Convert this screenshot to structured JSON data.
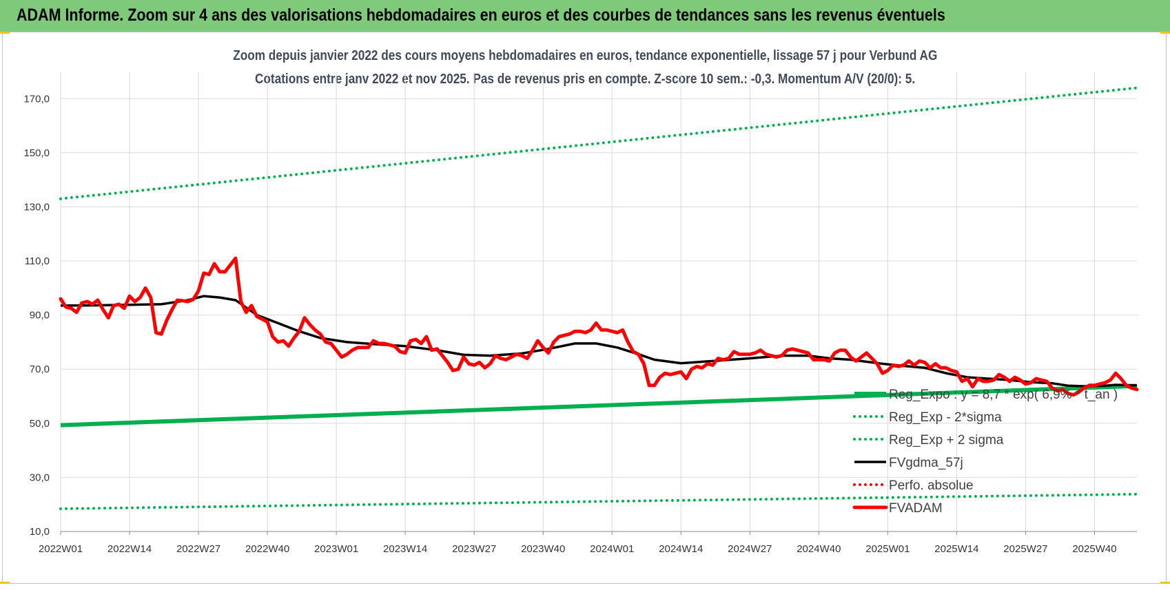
{
  "banner_title": "ADAM Informe. Zoom sur 4 ans des valorisations hebdomadaires en euros et des courbes de tendances sans les revenus éventuels",
  "chart_data": {
    "type": "line",
    "title_line1": "Zoom depuis janvier 2022 des cours moyens hebdomadaires en euros, tendance exponentielle, lissage 57 j pour Verbund AG",
    "title_line2": "Cotations entre janv 2022 et nov 2025. Pas de revenus pris en compte. Z-score 10 sem.: -0,3. Momentum A/V (20/0): 5.",
    "y_ticks": [
      "10,0",
      "30,0",
      "50,0",
      "70,0",
      "90,0",
      "110,0",
      "130,0",
      "150,0",
      "170,0"
    ],
    "ylim": [
      10,
      180
    ],
    "x_ticks": [
      {
        "week": 1,
        "label": "2022W01"
      },
      {
        "week": 14,
        "label": "2022W14"
      },
      {
        "week": 27,
        "label": "2022W27"
      },
      {
        "week": 40,
        "label": "2022W40"
      },
      {
        "week": 53,
        "label": "2023W01"
      },
      {
        "week": 66,
        "label": "2023W14"
      },
      {
        "week": 79,
        "label": "2023W27"
      },
      {
        "week": 92,
        "label": "2023W40"
      },
      {
        "week": 105,
        "label": "2024W01"
      },
      {
        "week": 118,
        "label": "2024W14"
      },
      {
        "week": 131,
        "label": "2024W27"
      },
      {
        "week": 144,
        "label": "2024W40"
      },
      {
        "week": 157,
        "label": "2025W01"
      },
      {
        "week": 170,
        "label": "2025W14"
      },
      {
        "week": 183,
        "label": "2025W27"
      },
      {
        "week": 196,
        "label": "2025W40"
      }
    ],
    "week_range": [
      1,
      204
    ],
    "grid": true,
    "legend_position": "right-middle",
    "series": [
      {
        "name": "Reg_Expo : y = 8,7 * exp( 6,9% * t_an )",
        "style": "thick-solid",
        "color": "#00b050",
        "points": [
          [
            1,
            49.3
          ],
          [
            204,
            63.8
          ]
        ]
      },
      {
        "name": "Reg_Exp - 2*sigma",
        "style": "dotted",
        "color": "#00b050",
        "points": [
          [
            1,
            18.4
          ],
          [
            204,
            23.8
          ]
        ]
      },
      {
        "name": "Reg_Exp + 2 sigma",
        "style": "dotted",
        "color": "#00b050",
        "points": [
          [
            1,
            133.0
          ],
          [
            204,
            174.0
          ]
        ]
      },
      {
        "name": "FVgdma_57j",
        "style": "solid",
        "color": "#000000",
        "points": [
          [
            1,
            93.5
          ],
          [
            8,
            93.6
          ],
          [
            14,
            93.8
          ],
          [
            20,
            94.0
          ],
          [
            25,
            95.5
          ],
          [
            28,
            97.0
          ],
          [
            31,
            96.5
          ],
          [
            34,
            95.5
          ],
          [
            38,
            90.0
          ],
          [
            42,
            87.0
          ],
          [
            46,
            84.0
          ],
          [
            50,
            81.5
          ],
          [
            55,
            80.0
          ],
          [
            60,
            79.3
          ],
          [
            66,
            78.5
          ],
          [
            72,
            77.0
          ],
          [
            77,
            75.3
          ],
          [
            82,
            75.0
          ],
          [
            88,
            75.8
          ],
          [
            93,
            77.5
          ],
          [
            98,
            79.5
          ],
          [
            102,
            79.5
          ],
          [
            106,
            78.0
          ],
          [
            110,
            75.5
          ],
          [
            113,
            73.5
          ],
          [
            118,
            72.2
          ],
          [
            124,
            73.0
          ],
          [
            131,
            74.0
          ],
          [
            137,
            75.0
          ],
          [
            142,
            75.0
          ],
          [
            146,
            74.0
          ],
          [
            150,
            73.5
          ],
          [
            156,
            72.0
          ],
          [
            160,
            71.2
          ],
          [
            164,
            70.5
          ],
          [
            168,
            68.5
          ],
          [
            172,
            67.0
          ],
          [
            176,
            66.5
          ],
          [
            180,
            66.0
          ],
          [
            184,
            65.2
          ],
          [
            188,
            64.8
          ],
          [
            191,
            63.9
          ],
          [
            194,
            63.7
          ],
          [
            198,
            63.9
          ],
          [
            200,
            64.2
          ],
          [
            204,
            64.0
          ]
        ]
      },
      {
        "name": "Perfo. absolue",
        "style": "dotted",
        "color": "#ff0000",
        "points": []
      },
      {
        "name": "FVADAM",
        "style": "thick-solid",
        "color": "#ff0000",
        "points": [
          [
            1,
            96.0
          ],
          [
            2,
            93.0
          ],
          [
            3,
            92.5
          ],
          [
            4,
            91.0
          ],
          [
            5,
            94.5
          ],
          [
            6,
            95.0
          ],
          [
            7,
            94.0
          ],
          [
            8,
            95.5
          ],
          [
            9,
            92.0
          ],
          [
            10,
            89.0
          ],
          [
            11,
            93.5
          ],
          [
            12,
            94.0
          ],
          [
            13,
            92.5
          ],
          [
            14,
            97.0
          ],
          [
            15,
            95.0
          ],
          [
            16,
            96.5
          ],
          [
            17,
            100.0
          ],
          [
            18,
            96.5
          ],
          [
            19,
            83.5
          ],
          [
            20,
            83.0
          ],
          [
            21,
            88.0
          ],
          [
            22,
            92.0
          ],
          [
            23,
            95.5
          ],
          [
            24,
            95.3
          ],
          [
            25,
            95.0
          ],
          [
            26,
            95.8
          ],
          [
            27,
            99.0
          ],
          [
            28,
            105.5
          ],
          [
            29,
            105.0
          ],
          [
            30,
            109.0
          ],
          [
            31,
            106.0
          ],
          [
            32,
            106.0
          ],
          [
            33,
            108.5
          ],
          [
            34,
            111.0
          ],
          [
            35,
            95.0
          ],
          [
            36,
            91.0
          ],
          [
            37,
            93.5
          ],
          [
            38,
            89.5
          ],
          [
            39,
            88.5
          ],
          [
            40,
            87.5
          ],
          [
            41,
            82.0
          ],
          [
            42,
            80.0
          ],
          [
            43,
            80.5
          ],
          [
            44,
            78.5
          ],
          [
            45,
            81.5
          ],
          [
            46,
            84.0
          ],
          [
            47,
            89.0
          ],
          [
            48,
            86.5
          ],
          [
            49,
            84.5
          ],
          [
            50,
            83.0
          ],
          [
            51,
            80.0
          ],
          [
            52,
            79.5
          ],
          [
            53,
            77.0
          ],
          [
            54,
            74.5
          ],
          [
            55,
            75.5
          ],
          [
            56,
            77.0
          ],
          [
            57,
            78.0
          ],
          [
            58,
            78.0
          ],
          [
            59,
            78.0
          ],
          [
            60,
            80.5
          ],
          [
            61,
            79.5
          ],
          [
            62,
            79.5
          ],
          [
            63,
            79.0
          ],
          [
            64,
            78.5
          ],
          [
            65,
            76.5
          ],
          [
            66,
            76.0
          ],
          [
            67,
            80.5
          ],
          [
            68,
            81.0
          ],
          [
            69,
            79.5
          ],
          [
            70,
            82.0
          ],
          [
            71,
            77.0
          ],
          [
            72,
            77.5
          ],
          [
            73,
            75.0
          ],
          [
            74,
            72.5
          ],
          [
            75,
            69.5
          ],
          [
            76,
            70.0
          ],
          [
            77,
            74.5
          ],
          [
            78,
            72.0
          ],
          [
            79,
            71.5
          ],
          [
            80,
            72.5
          ],
          [
            81,
            70.5
          ],
          [
            82,
            72.0
          ],
          [
            83,
            75.0
          ],
          [
            84,
            74.0
          ],
          [
            85,
            73.5
          ],
          [
            86,
            74.5
          ],
          [
            87,
            75.5
          ],
          [
            88,
            75.0
          ],
          [
            89,
            74.0
          ],
          [
            90,
            77.0
          ],
          [
            91,
            80.5
          ],
          [
            92,
            78.0
          ],
          [
            93,
            76.0
          ],
          [
            94,
            80.0
          ],
          [
            95,
            82.0
          ],
          [
            96,
            82.5
          ],
          [
            97,
            83.0
          ],
          [
            98,
            84.0
          ],
          [
            99,
            84.0
          ],
          [
            100,
            83.5
          ],
          [
            101,
            84.5
          ],
          [
            102,
            87.0
          ],
          [
            103,
            84.5
          ],
          [
            104,
            84.5
          ],
          [
            105,
            84.0
          ],
          [
            106,
            83.5
          ],
          [
            107,
            84.5
          ],
          [
            108,
            80.0
          ],
          [
            109,
            76.5
          ],
          [
            110,
            75.5
          ],
          [
            111,
            72.0
          ],
          [
            112,
            64.0
          ],
          [
            113,
            64.0
          ],
          [
            114,
            67.0
          ],
          [
            115,
            68.5
          ],
          [
            116,
            68.0
          ],
          [
            117,
            68.5
          ],
          [
            118,
            69.0
          ],
          [
            119,
            66.5
          ],
          [
            120,
            70.0
          ],
          [
            121,
            71.0
          ],
          [
            122,
            70.5
          ],
          [
            123,
            72.0
          ],
          [
            124,
            71.5
          ],
          [
            125,
            74.0
          ],
          [
            126,
            73.5
          ],
          [
            127,
            74.0
          ],
          [
            128,
            76.5
          ],
          [
            129,
            75.5
          ],
          [
            130,
            75.5
          ],
          [
            131,
            75.5
          ],
          [
            132,
            76.0
          ],
          [
            133,
            77.0
          ],
          [
            134,
            75.5
          ],
          [
            135,
            75.0
          ],
          [
            136,
            74.5
          ],
          [
            137,
            75.0
          ],
          [
            138,
            77.0
          ],
          [
            139,
            77.5
          ],
          [
            140,
            77.0
          ],
          [
            141,
            76.5
          ],
          [
            142,
            76.0
          ],
          [
            143,
            73.5
          ],
          [
            144,
            73.5
          ],
          [
            145,
            73.5
          ],
          [
            146,
            73.0
          ],
          [
            147,
            76.0
          ],
          [
            148,
            77.0
          ],
          [
            149,
            77.0
          ],
          [
            150,
            74.5
          ],
          [
            151,
            73.0
          ],
          [
            152,
            74.5
          ],
          [
            153,
            76.0
          ],
          [
            154,
            74.0
          ],
          [
            155,
            72.0
          ],
          [
            156,
            68.5
          ],
          [
            157,
            69.5
          ],
          [
            158,
            71.5
          ],
          [
            159,
            71.0
          ],
          [
            160,
            71.5
          ],
          [
            161,
            73.0
          ],
          [
            162,
            71.5
          ],
          [
            163,
            73.0
          ],
          [
            164,
            72.5
          ],
          [
            165,
            70.5
          ],
          [
            166,
            72.0
          ],
          [
            167,
            70.5
          ],
          [
            168,
            70.5
          ],
          [
            169,
            69.5
          ],
          [
            170,
            69.0
          ],
          [
            171,
            65.5
          ],
          [
            172,
            66.5
          ],
          [
            173,
            63.5
          ],
          [
            174,
            66.5
          ],
          [
            175,
            65.5
          ],
          [
            176,
            65.5
          ],
          [
            177,
            66.0
          ],
          [
            178,
            68.0
          ],
          [
            179,
            67.0
          ],
          [
            180,
            65.5
          ],
          [
            181,
            67.0
          ],
          [
            182,
            66.0
          ],
          [
            183,
            64.5
          ],
          [
            184,
            65.0
          ],
          [
            185,
            66.5
          ],
          [
            186,
            66.0
          ],
          [
            187,
            65.5
          ],
          [
            188,
            63.0
          ],
          [
            189,
            62.0
          ],
          [
            190,
            62.5
          ],
          [
            191,
            61.0
          ],
          [
            192,
            60.5
          ],
          [
            193,
            61.5
          ],
          [
            194,
            63.0
          ],
          [
            195,
            64.0
          ],
          [
            196,
            64.0
          ],
          [
            197,
            64.5
          ],
          [
            198,
            65.0
          ],
          [
            199,
            66.0
          ],
          [
            200,
            68.5
          ],
          [
            201,
            66.5
          ],
          [
            202,
            64.0
          ],
          [
            203,
            63.0
          ],
          [
            204,
            62.5
          ]
        ]
      }
    ]
  },
  "colors": {
    "banner": "#7fc97a",
    "regression": "#00b050",
    "smoothing": "#000000",
    "price": "#ff0000",
    "grid": "#d9d9d9"
  }
}
